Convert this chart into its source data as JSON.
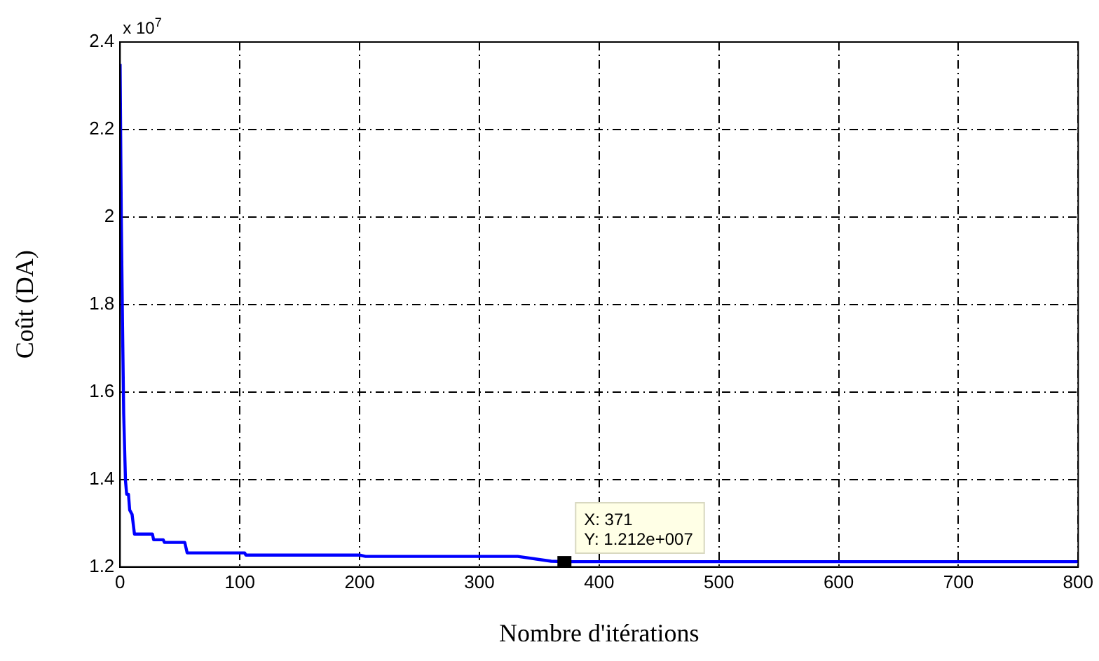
{
  "chart_data": {
    "type": "line",
    "xlabel": "Nombre d'itérations",
    "ylabel": "Coût (DA)",
    "x": [
      0,
      1,
      2,
      3,
      4.5,
      5.5,
      7,
      8,
      10,
      12,
      27,
      28,
      36,
      37,
      54,
      56,
      104,
      105,
      200,
      205,
      332,
      360,
      371,
      800
    ],
    "series": [
      {
        "color": "#0000ff",
        "values": [
          2.35,
          2.0,
          1.76,
          1.55,
          1.397,
          1.366,
          1.366,
          1.33,
          1.32,
          1.275,
          1.275,
          1.262,
          1.262,
          1.256,
          1.256,
          1.232,
          1.232,
          1.227,
          1.227,
          1.224,
          1.224,
          1.213,
          1.212,
          1.212
        ]
      }
    ],
    "xlim": [
      0,
      800
    ],
    "xticks": [
      0,
      100,
      200,
      300,
      400,
      500,
      600,
      700,
      800
    ],
    "ylim": [
      1.2,
      2.4
    ],
    "yticks": [
      1.2,
      1.4,
      1.6,
      1.8,
      2,
      2.2,
      2.4
    ],
    "grid": true,
    "legend": false,
    "marker": "none",
    "line_style": "solid",
    "annotations": [
      "x 10$^{7}$",
      {
        "text": "X: 371\nY: 1.212e+007",
        "x": 371,
        "y": 1.212
      }
    ]
  }
}
